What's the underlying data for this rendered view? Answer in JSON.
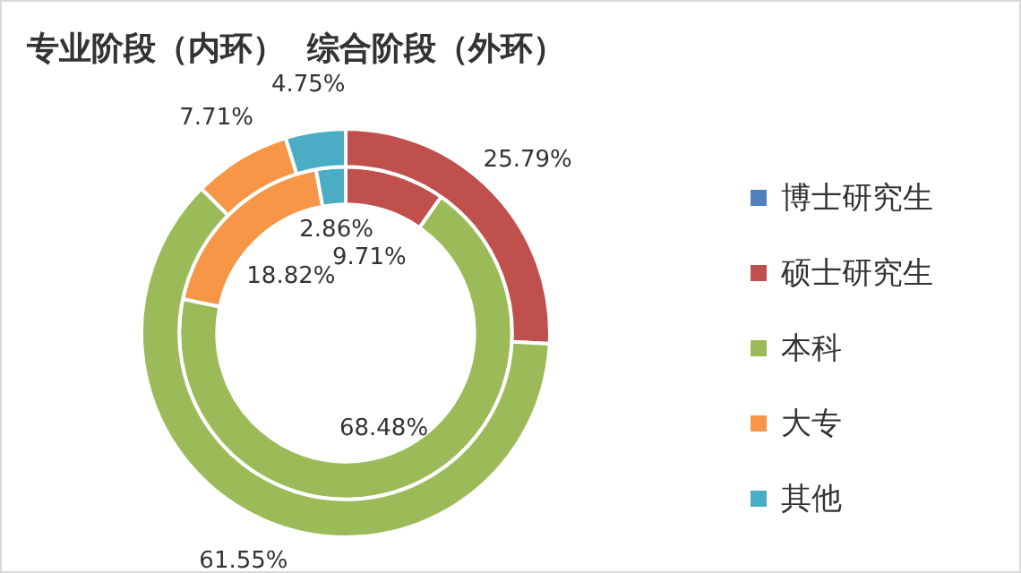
{
  "chart_data": {
    "type": "donut",
    "title": "专业阶段（内环）  综合阶段（外环）",
    "categories": [
      "博士研究生",
      "硕士研究生",
      "本科",
      "大专",
      "其他"
    ],
    "colors": [
      "#4f81bd",
      "#c0504d",
      "#9bbb59",
      "#f79646",
      "#4bacc6"
    ],
    "series": [
      {
        "values": [
          null,
          25.79,
          61.55,
          7.71,
          4.75
        ],
        "value_labels": [
          null,
          "25.79%",
          "61.55%",
          "7.71%",
          "4.75%"
        ]
      },
      {
        "values": [
          null,
          9.71,
          68.48,
          18.82,
          2.86
        ],
        "value_labels": [
          null,
          "9.71%",
          "68.48%",
          "18.82%",
          "2.86%"
        ]
      }
    ],
    "legend": "right"
  }
}
